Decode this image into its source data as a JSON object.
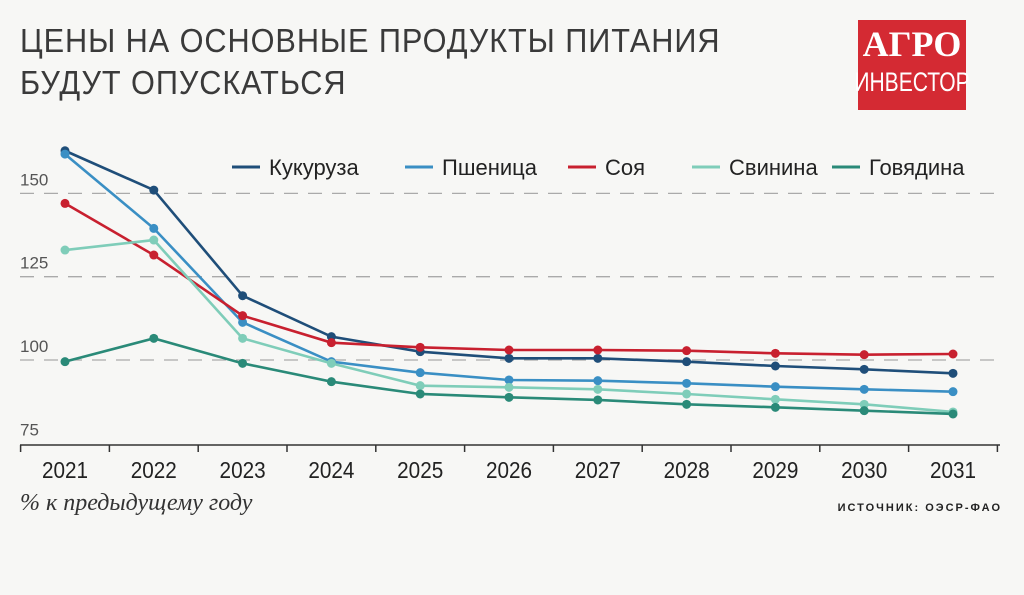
{
  "title_lines": [
    "ЦЕНЫ НА ОСНОВНЫЕ ПРОДУКТЫ ПИТАНИЯ",
    "БУДУТ ОПУСКАТЬСЯ"
  ],
  "logo": {
    "line1": "АГРО",
    "line2": "ИНВЕСТОР",
    "color": "#d42a33"
  },
  "footnote": "% к предыдущему году",
  "source": "ИСТОЧНИК: ОЭСР-ФАО",
  "chart_data": {
    "type": "line",
    "title": "ЦЕНЫ НА ОСНОВНЫЕ ПРОДУКТЫ ПИТАНИЯ БУДУТ ОПУСКАТЬСЯ",
    "xlabel": "",
    "ylabel": "% к предыдущему году",
    "x": [
      "2021",
      "2022",
      "2023",
      "2024",
      "2025",
      "2026",
      "2027",
      "2028",
      "2029",
      "2030",
      "2031"
    ],
    "yticks": [
      75,
      100,
      125,
      150
    ],
    "ylim": [
      72,
      165
    ],
    "grid": "horizontal-dashed",
    "legend": "top",
    "series": [
      {
        "name": "Кукуруза",
        "color": "#1f4e79",
        "values": [
          162.8,
          151,
          119.3,
          107,
          102.5,
          100.5,
          100.5,
          99.5,
          98.2,
          97.2,
          96
        ]
      },
      {
        "name": "Пшеница",
        "color": "#3a8fc4",
        "values": [
          161.8,
          139.5,
          111.3,
          99.5,
          96.2,
          94,
          93.8,
          93,
          92,
          91.2,
          90.5
        ]
      },
      {
        "name": "Соя",
        "color": "#c8202f",
        "values": [
          147,
          131.5,
          113.3,
          105.2,
          103.8,
          103,
          103,
          102.8,
          102,
          101.6,
          101.8
        ]
      },
      {
        "name": "Свинина",
        "color": "#7fcdb9",
        "values": [
          133,
          136,
          106.5,
          99,
          92.3,
          91.8,
          91.2,
          89.8,
          88.2,
          86.7,
          84.4
        ]
      },
      {
        "name": "Говядина",
        "color": "#2a8a78",
        "values": [
          99.5,
          106.5,
          99,
          93.5,
          89.8,
          88.8,
          88,
          86.7,
          85.8,
          84.8,
          83.8
        ]
      }
    ]
  }
}
